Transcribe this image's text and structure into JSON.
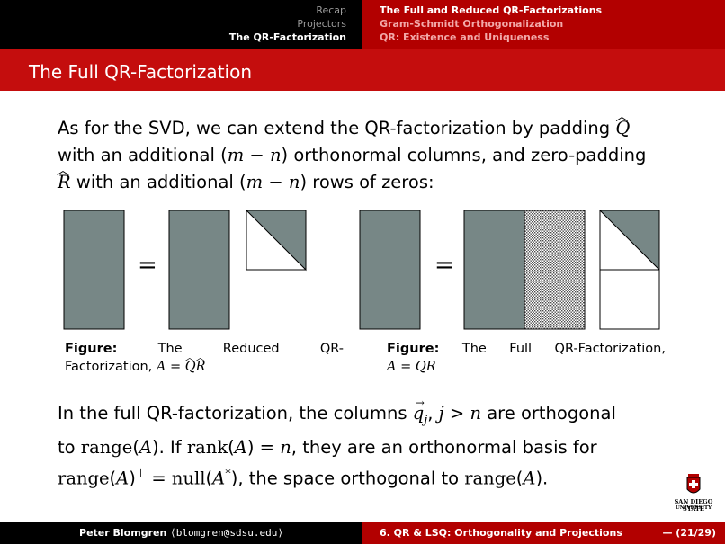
{
  "nav": {
    "sections": [
      "Recap",
      "Projectors",
      "The QR-Factorization"
    ],
    "subsections": [
      "The Full and Reduced QR-Factorizations",
      "Gram-Schmidt Orthogonalization",
      "QR: Existence and Uniqueness"
    ]
  },
  "frame_title": "The Full QR-Factorization",
  "para1": {
    "t1": "As for the SVD, we can extend the QR-factorization by padding ",
    "q_hat": "Q",
    "t2": "with an additional (",
    "m": "m",
    "minus": " − ",
    "n": "n",
    "t3": ") orthonormal columns, and zero-padding",
    "r_hat": "R",
    "t4": " with an additional (",
    "t5": ") rows of zeros:"
  },
  "figure_left": {
    "equals": "=",
    "cap_label": "Figure:",
    "cap_words": [
      "The",
      "Reduced",
      "QR-"
    ],
    "cap_line2": "Factorization, ",
    "cap_eq_a": "A",
    "cap_eq_sign": " = ",
    "cap_eq_q": "Q",
    "cap_eq_r": "R"
  },
  "figure_right": {
    "equals": "=",
    "cap_label": "Figure:",
    "cap_words": [
      "The",
      "Full",
      "QR-Factorization,"
    ],
    "cap_line2": "A = QR"
  },
  "para2": {
    "t1": "In the full QR-factorization, the columns ",
    "qj": "q",
    "sub_j": "j",
    "t2": ", ",
    "j": "j",
    "gt": " > ",
    "n": "n",
    "t3": " are orthogonal",
    "t4": "to ",
    "range": "range",
    "A": "A",
    "t5": ". If ",
    "rank": "rank",
    "t6": " = ",
    "t7": ", they are an orthonormal basis for",
    "perp": "⊥",
    "t8": " = ",
    "null": "null",
    "Astar": "A",
    "star": "*",
    "t9": "), the space orthogonal to ",
    "t10": ")."
  },
  "footer": {
    "author": "Peter Blomgren ",
    "email": "⟨blomgren@sdsu.edu⟩",
    "course": "6. QR & LSQ: Orthogonality and Projections",
    "page": "— (21/29)"
  },
  "logo": {
    "line1": "SAN DIEGO STATE",
    "line2": "UNIVERSITY"
  },
  "colors": {
    "matrix_fill": "#778786",
    "header_black": "#000000",
    "header_red": "#b20000",
    "title_red": "#c40d0d"
  }
}
